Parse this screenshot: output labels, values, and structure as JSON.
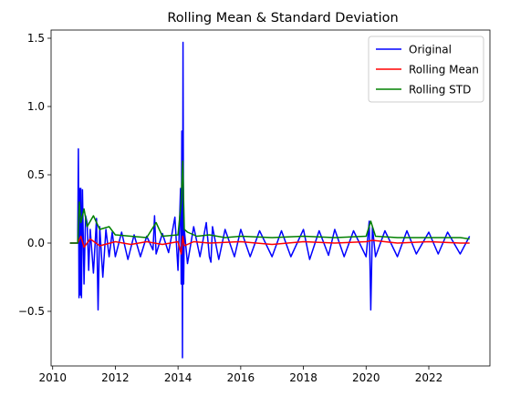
{
  "chart_data": {
    "type": "line",
    "title": "Rolling Mean & Standard Deviation",
    "xlabel": "",
    "ylabel": "",
    "xlim": [
      2009.95,
      2023.95
    ],
    "ylim": [
      -0.9,
      1.56
    ],
    "x_ticks": [
      2010,
      2012,
      2014,
      2016,
      2018,
      2020,
      2022
    ],
    "y_ticks": [
      -0.5,
      0.0,
      0.5,
      1.0,
      1.5
    ],
    "x_tick_labels": [
      "2010",
      "2012",
      "2014",
      "2016",
      "2018",
      "2020",
      "2022"
    ],
    "y_tick_labels": [
      "−0.5",
      "0.0",
      "0.5",
      "1.0",
      "1.5"
    ],
    "legend_position": "top-right",
    "grid": false,
    "series": [
      {
        "name": "Original",
        "color": "#0000ff",
        "x": [
          2010.55,
          2010.8,
          2010.82,
          2010.84,
          2010.86,
          2010.88,
          2010.9,
          2010.92,
          2010.95,
          2011.0,
          2011.05,
          2011.1,
          2011.15,
          2011.2,
          2011.3,
          2011.4,
          2011.45,
          2011.5,
          2011.6,
          2011.7,
          2011.8,
          2011.9,
          2012.0,
          2012.2,
          2012.4,
          2012.6,
          2012.8,
          2013.0,
          2013.2,
          2013.25,
          2013.3,
          2013.5,
          2013.7,
          2013.9,
          2014.0,
          2014.08,
          2014.1,
          2014.12,
          2014.14,
          2014.16,
          2014.18,
          2014.2,
          2014.3,
          2014.5,
          2014.7,
          2014.9,
          2015.0,
          2015.05,
          2015.1,
          2015.3,
          2015.5,
          2015.8,
          2016.0,
          2016.3,
          2016.6,
          2017.0,
          2017.3,
          2017.6,
          2018.0,
          2018.2,
          2018.5,
          2018.8,
          2019.0,
          2019.3,
          2019.6,
          2020.0,
          2020.1,
          2020.15,
          2020.2,
          2020.3,
          2020.6,
          2021.0,
          2021.3,
          2021.6,
          2022.0,
          2022.3,
          2022.6,
          2023.0,
          2023.3
        ],
        "y": [
          0.0,
          0.0,
          0.69,
          -0.4,
          0.4,
          -0.38,
          0.4,
          -0.4,
          0.39,
          -0.3,
          0.2,
          0.15,
          -0.2,
          0.1,
          -0.22,
          0.18,
          -0.49,
          0.12,
          -0.25,
          0.1,
          -0.1,
          0.08,
          -0.1,
          0.08,
          -0.12,
          0.06,
          -0.1,
          0.05,
          -0.05,
          0.2,
          -0.08,
          0.07,
          -0.07,
          0.19,
          -0.2,
          0.4,
          -0.3,
          0.82,
          -0.84,
          1.47,
          -0.3,
          0.1,
          -0.15,
          0.12,
          -0.1,
          0.15,
          -0.1,
          -0.14,
          0.12,
          -0.12,
          0.1,
          -0.1,
          0.1,
          -0.1,
          0.09,
          -0.1,
          0.09,
          -0.1,
          0.1,
          -0.12,
          0.09,
          -0.09,
          0.1,
          -0.1,
          0.09,
          -0.1,
          0.16,
          -0.49,
          0.12,
          -0.1,
          0.09,
          -0.1,
          0.09,
          -0.08,
          0.08,
          -0.08,
          0.08,
          -0.08,
          0.05
        ]
      },
      {
        "name": "Rolling Mean",
        "color": "#ff0000",
        "x": [
          2010.55,
          2010.8,
          2010.9,
          2011.0,
          2011.2,
          2011.5,
          2012.0,
          2012.5,
          2013.0,
          2013.5,
          2014.0,
          2014.1,
          2014.15,
          2014.2,
          2014.5,
          2015.0,
          2016.0,
          2017.0,
          2018.0,
          2019.0,
          2020.0,
          2020.2,
          2021.0,
          2022.0,
          2023.0,
          2023.3
        ],
        "y": [
          0.0,
          0.0,
          0.05,
          -0.03,
          0.03,
          -0.02,
          0.01,
          -0.01,
          0.01,
          -0.01,
          0.01,
          -0.08,
          0.05,
          -0.02,
          0.01,
          0.0,
          0.01,
          -0.01,
          0.01,
          0.0,
          0.01,
          0.02,
          0.0,
          0.01,
          0.0,
          0.0
        ]
      },
      {
        "name": "Rolling STD",
        "color": "#008000",
        "x": [
          2010.55,
          2010.8,
          2010.85,
          2010.9,
          2011.0,
          2011.1,
          2011.3,
          2011.5,
          2011.8,
          2012.0,
          2012.5,
          2013.0,
          2013.3,
          2013.5,
          2014.0,
          2014.1,
          2014.15,
          2014.2,
          2014.3,
          2014.6,
          2015.0,
          2015.5,
          2016.0,
          2017.0,
          2018.0,
          2019.0,
          2020.0,
          2020.15,
          2020.3,
          2021.0,
          2022.0,
          2023.0,
          2023.3
        ],
        "y": [
          0.0,
          0.0,
          0.3,
          0.15,
          0.25,
          0.12,
          0.2,
          0.1,
          0.12,
          0.06,
          0.05,
          0.04,
          0.15,
          0.05,
          0.06,
          0.3,
          0.6,
          0.1,
          0.08,
          0.05,
          0.06,
          0.04,
          0.05,
          0.04,
          0.05,
          0.04,
          0.05,
          0.16,
          0.05,
          0.04,
          0.04,
          0.04,
          0.03
        ]
      }
    ]
  }
}
